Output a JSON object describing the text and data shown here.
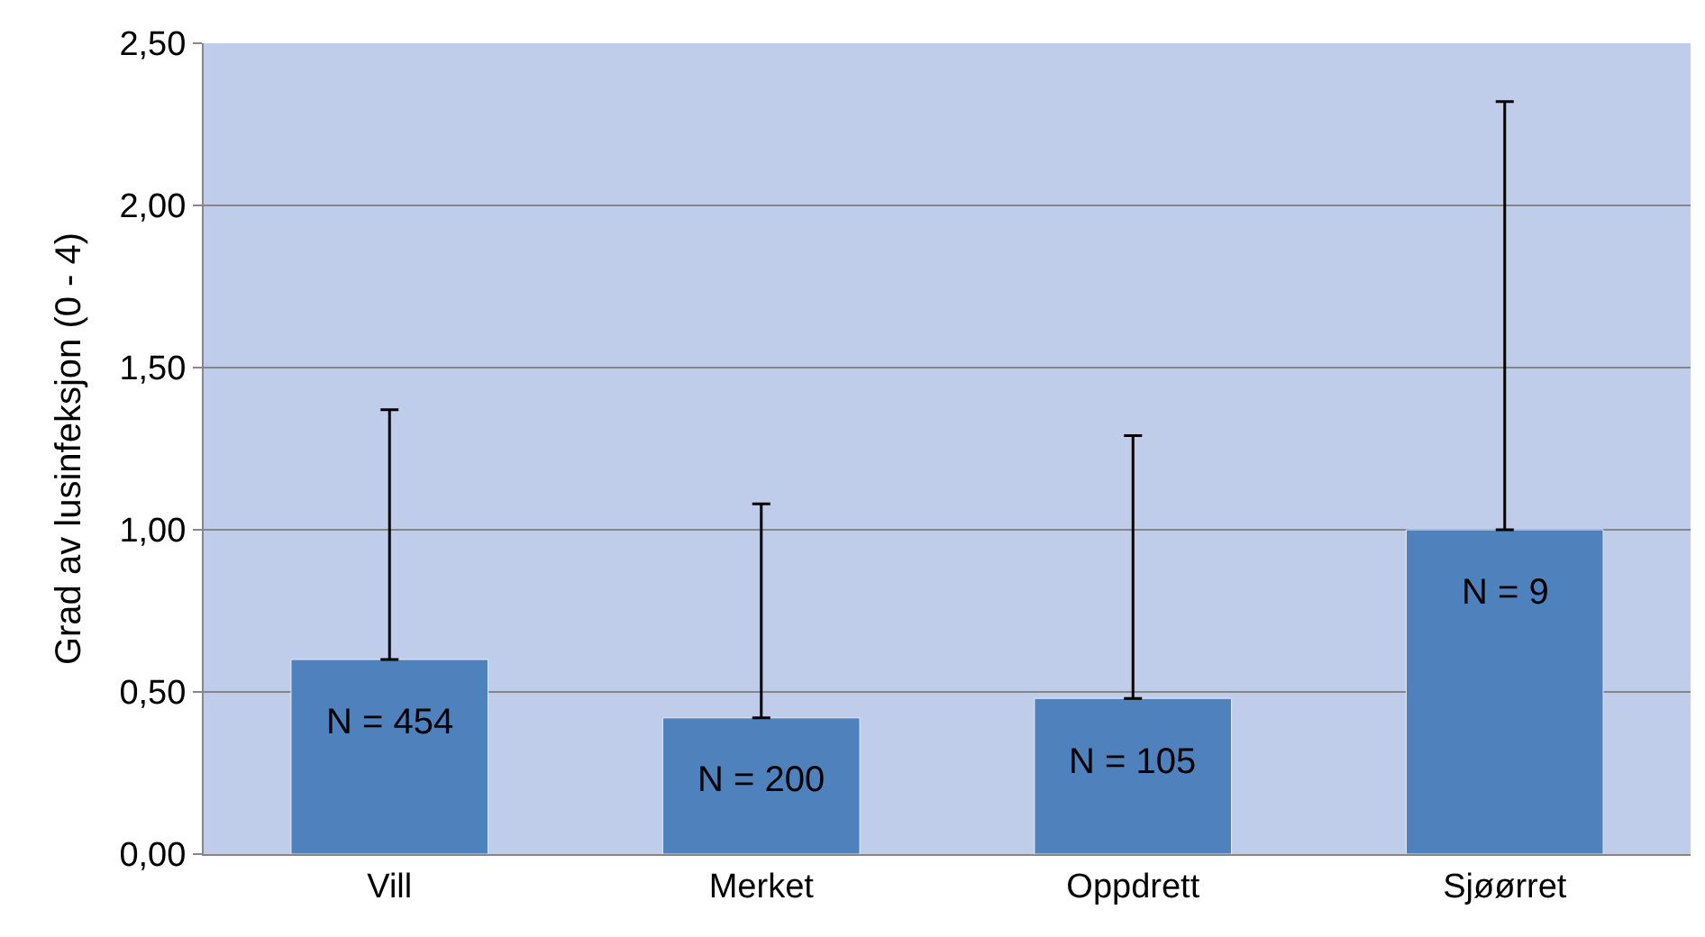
{
  "chart_data": {
    "type": "bar",
    "ylabel": "Grad av lusinfeksjon (0 - 4)",
    "categories": [
      "Vill",
      "Merket",
      "Oppdrett",
      "Sjøørret"
    ],
    "values": [
      0.6,
      0.42,
      0.48,
      1.0
    ],
    "color": "#4f81bd",
    "errors": [
      [
        0.6,
        1.37
      ],
      [
        0.42,
        1.08
      ],
      [
        0.48,
        1.29
      ],
      [
        1.0,
        2.32
      ]
    ],
    "ylim": [
      0,
      2.5
    ],
    "yticks": [
      {
        "value": 0,
        "label": "0,00"
      },
      {
        "value": 0.5,
        "label": "0,50"
      },
      {
        "value": 1,
        "label": "1,00"
      },
      {
        "value": 1.5,
        "label": "1,50"
      },
      {
        "value": 2,
        "label": "2,00"
      },
      {
        "value": 2.5,
        "label": "2,50"
      }
    ],
    "grid": "y",
    "legend": false,
    "annotations": [
      "N = 454",
      "N = 200",
      "N = 105",
      "N = 9"
    ]
  }
}
